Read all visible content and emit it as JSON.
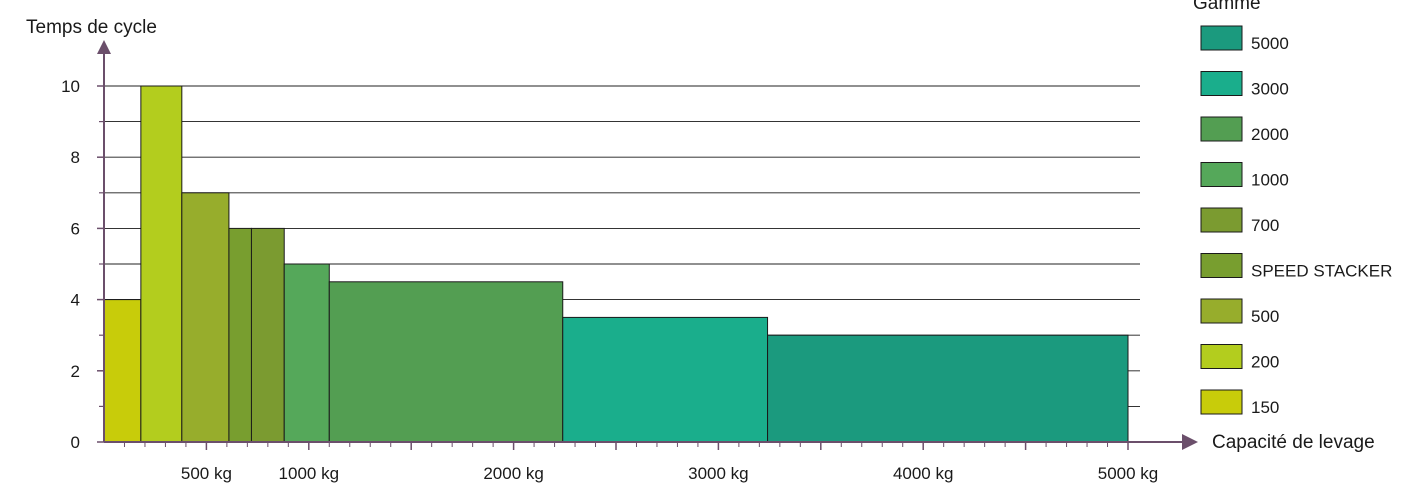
{
  "chart_data": {
    "type": "bar",
    "ylabel": "Temps de cycle",
    "xlabel": "Capacité de levage",
    "ylim": [
      0,
      10
    ],
    "yticks": [
      0,
      2,
      4,
      6,
      8,
      10
    ],
    "y_minor_gridlines": [
      1,
      3,
      5,
      7,
      9
    ],
    "xlim": [
      0,
      5000
    ],
    "x_tick_labels": [
      {
        "value": 500,
        "label": "500 kg"
      },
      {
        "value": 1000,
        "label": "1000 kg"
      },
      {
        "value": 2000,
        "label": "2000 kg"
      },
      {
        "value": 3000,
        "label": "3000 kg"
      },
      {
        "value": 4000,
        "label": "4000 kg"
      },
      {
        "value": 5000,
        "label": "5000 kg"
      }
    ],
    "grid": true,
    "legend_title": "Gamme",
    "legend_position": "right",
    "bars": [
      {
        "name": "150",
        "x_start": 0,
        "x_end": 180,
        "value": 4,
        "color": "#c8cc0a"
      },
      {
        "name": "200",
        "x_start": 180,
        "x_end": 380,
        "value": 10,
        "color": "#b3cd1e"
      },
      {
        "name": "500",
        "x_start": 380,
        "x_end": 610,
        "value": 7,
        "color": "#97ad2c"
      },
      {
        "name": "SPEED STACKER",
        "x_start": 610,
        "x_end": 720,
        "value": 6,
        "color": "#789e2f"
      },
      {
        "name": "700",
        "x_start": 720,
        "x_end": 880,
        "value": 6,
        "color": "#7b9b30"
      },
      {
        "name": "1000",
        "x_start": 880,
        "x_end": 1100,
        "value": 5,
        "color": "#55a85a"
      },
      {
        "name": "2000",
        "x_start": 1100,
        "x_end": 2240,
        "value": 4.5,
        "color": "#539e52"
      },
      {
        "name": "3000",
        "x_start": 2240,
        "x_end": 3240,
        "value": 3.5,
        "color": "#1aae8c"
      },
      {
        "name": "5000",
        "x_start": 3240,
        "x_end": 5000,
        "value": 3,
        "color": "#1b9a7e"
      }
    ],
    "legend": [
      {
        "label": "5000",
        "color": "#1b9a7e"
      },
      {
        "label": "3000",
        "color": "#1aae8c"
      },
      {
        "label": "2000",
        "color": "#539e52"
      },
      {
        "label": "1000",
        "color": "#55a85a"
      },
      {
        "label": "700",
        "color": "#7b9b30"
      },
      {
        "label": "SPEED STACKER",
        "color": "#789e2f"
      },
      {
        "label": "500",
        "color": "#97ad2c"
      },
      {
        "label": "200",
        "color": "#b3cd1e"
      },
      {
        "label": "150",
        "color": "#c8cc0a"
      }
    ]
  }
}
